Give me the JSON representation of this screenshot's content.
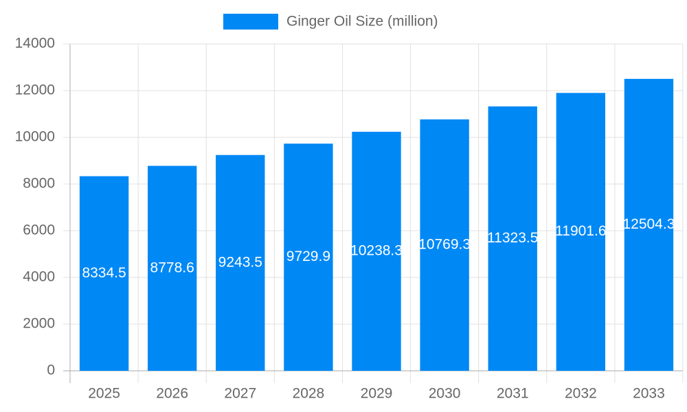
{
  "chart_data": {
    "type": "bar",
    "legend": "Ginger Oil Size (million)",
    "categories": [
      "2025",
      "2026",
      "2027",
      "2028",
      "2029",
      "2030",
      "2031",
      "2032",
      "2033"
    ],
    "values": [
      8334.5,
      8778.6,
      9243.5,
      9729.9,
      10238.3,
      10769.3,
      11323.5,
      11901.6,
      12504.3
    ],
    "color": "#0088f5",
    "ylim": [
      0,
      14000
    ],
    "yticks": [
      0,
      2000,
      4000,
      6000,
      8000,
      10000,
      12000,
      14000
    ],
    "grid": true
  }
}
